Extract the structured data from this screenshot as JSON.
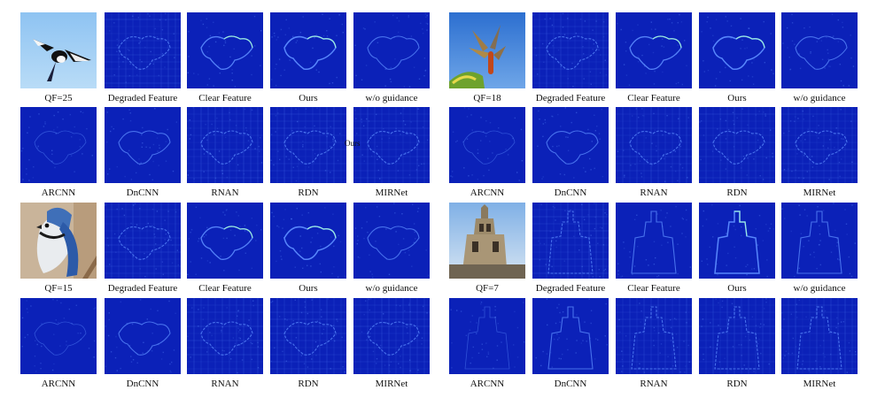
{
  "figure": {
    "stray_label": "Ours",
    "panels": [
      {
        "rows": [
          {
            "captions": [
              "QF=25",
              "Degraded Feature",
              "Clear Feature",
              "Ours",
              "w/o guidance"
            ]
          },
          {
            "captions": [
              "ARCNN",
              "DnCNN",
              "RNAN",
              "RDN",
              "MIRNet"
            ]
          }
        ],
        "photo_subject": "magpie"
      },
      {
        "rows": [
          {
            "captions": [
              "QF=18",
              "Degraded Feature",
              "Clear Feature",
              "Ours",
              "w/o guidance"
            ]
          },
          {
            "captions": [
              "ARCNN",
              "DnCNN",
              "RNAN",
              "RDN",
              "MIRNet"
            ]
          }
        ],
        "photo_subject": "dragonfly"
      },
      {
        "rows": [
          {
            "captions": [
              "QF=15",
              "Degraded Feature",
              "Clear Feature",
              "Ours",
              "w/o guidance"
            ]
          },
          {
            "captions": [
              "ARCNN",
              "DnCNN",
              "RNAN",
              "RDN",
              "MIRNet"
            ]
          }
        ],
        "photo_subject": "blue-jay"
      },
      {
        "rows": [
          {
            "captions": [
              "QF=7",
              "Degraded Feature",
              "Clear Feature",
              "Ours",
              "w/o guidance"
            ]
          },
          {
            "captions": [
              "ARCNN",
              "DnCNN",
              "RNAN",
              "RDN",
              "MIRNet"
            ]
          }
        ],
        "photo_subject": "church-tower"
      }
    ],
    "colors": {
      "feature_bg": "#0b21b8",
      "feature_edge": "#5c8cff",
      "feature_hot": "#a8ffd8",
      "sky_blue": "#7fb4ea"
    }
  }
}
